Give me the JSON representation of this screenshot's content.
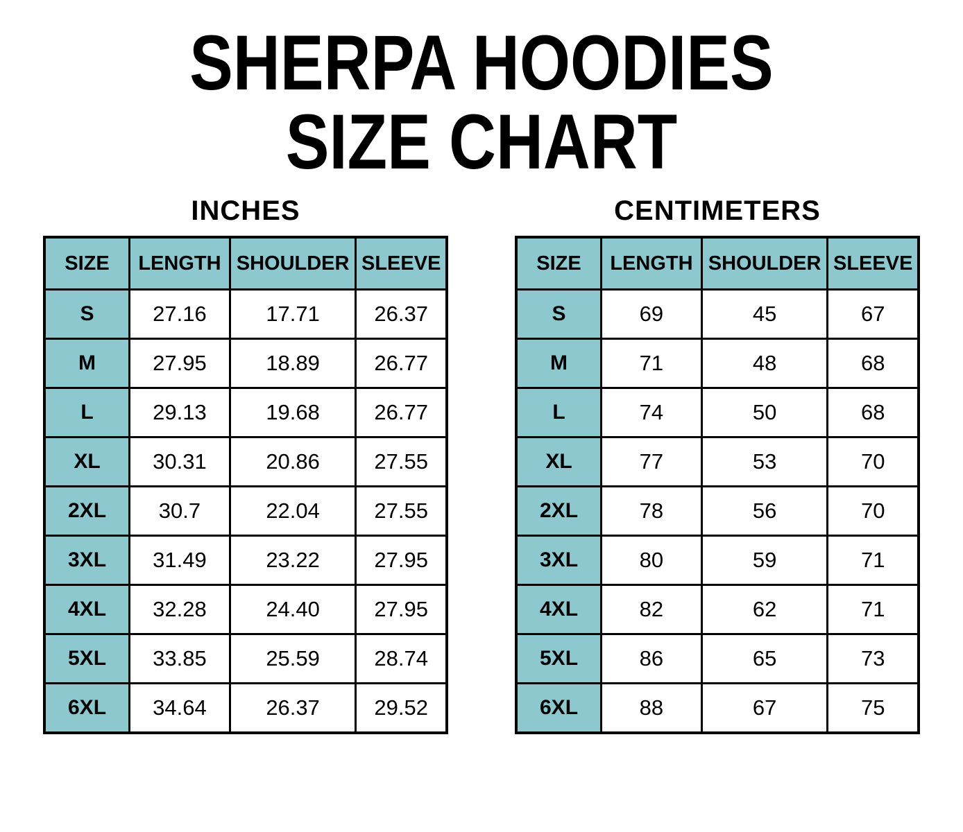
{
  "page": {
    "title_line1": "SHERPA HOODIES",
    "title_line2": "SIZE CHART"
  },
  "colors": {
    "header_teal": "#8CC8CE",
    "border": "#000000",
    "background": "#FFFFFF",
    "text": "#000000"
  },
  "chart_data": [
    {
      "type": "table",
      "title": "INCHES",
      "columns": [
        "SIZE",
        "LENGTH",
        "SHOULDER",
        "SLEEVE"
      ],
      "rows": [
        [
          "S",
          "27.16",
          "17.71",
          "26.37"
        ],
        [
          "M",
          "27.95",
          "18.89",
          "26.77"
        ],
        [
          "L",
          "29.13",
          "19.68",
          "26.77"
        ],
        [
          "XL",
          "30.31",
          "20.86",
          "27.55"
        ],
        [
          "2XL",
          "30.7",
          "22.04",
          "27.55"
        ],
        [
          "3XL",
          "31.49",
          "23.22",
          "27.95"
        ],
        [
          "4XL",
          "32.28",
          "24.40",
          "27.95"
        ],
        [
          "5XL",
          "33.85",
          "25.59",
          "28.74"
        ],
        [
          "6XL",
          "34.64",
          "26.37",
          "29.52"
        ]
      ]
    },
    {
      "type": "table",
      "title": "CENTIMETERS",
      "columns": [
        "SIZE",
        "LENGTH",
        "SHOULDER",
        "SLEEVE"
      ],
      "rows": [
        [
          "S",
          "69",
          "45",
          "67"
        ],
        [
          "M",
          "71",
          "48",
          "68"
        ],
        [
          "L",
          "74",
          "50",
          "68"
        ],
        [
          "XL",
          "77",
          "53",
          "70"
        ],
        [
          "2XL",
          "78",
          "56",
          "70"
        ],
        [
          "3XL",
          "80",
          "59",
          "71"
        ],
        [
          "4XL",
          "82",
          "62",
          "71"
        ],
        [
          "5XL",
          "86",
          "65",
          "73"
        ],
        [
          "6XL",
          "88",
          "67",
          "75"
        ]
      ]
    }
  ]
}
